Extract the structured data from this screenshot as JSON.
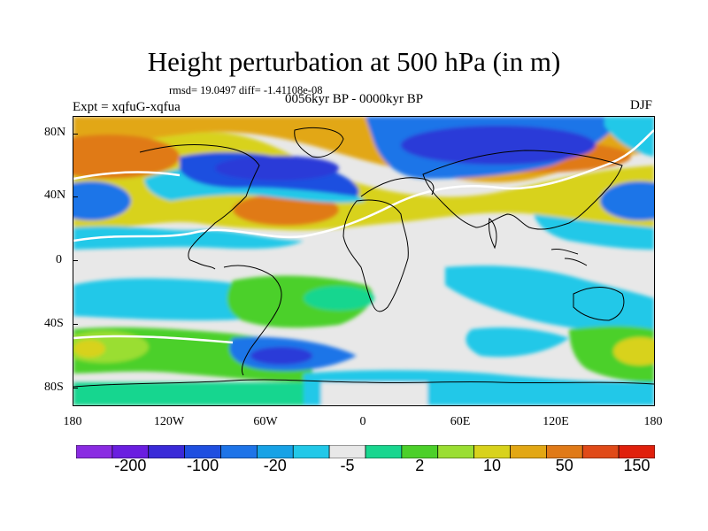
{
  "title": "Height perturbation at 500 hPa (in m)",
  "stats_line": "rmsd= 19.0497 diff= -1.41108e-08",
  "left_label": "Expt = xqfuG-xqfua",
  "center_label": "0056kyr BP - 0000kyr BP",
  "right_label": "DJF",
  "lat_labels": [
    "80N",
    "40N",
    "0",
    "40S",
    "80S"
  ],
  "lon_labels": [
    "180",
    "120W",
    "60W",
    "0",
    "60E",
    "120E",
    "180"
  ],
  "colorbar": {
    "colors": [
      "#8a2be2",
      "#6a1ee0",
      "#3a2ad8",
      "#1f4fe0",
      "#1e74e8",
      "#17a2e6",
      "#22c8e8",
      "#e8e8e8",
      "#19d68f",
      "#4cd02a",
      "#9ade32",
      "#d8d21c",
      "#e2a714",
      "#e07a18",
      "#e04a18",
      "#e0200c"
    ],
    "labels": [
      "-200",
      "-100",
      "-20",
      "-5",
      "2",
      "10",
      "50",
      "150"
    ]
  },
  "colors": {
    "neg_strong": "#1f2fd8",
    "neg_mid": "#1e74e8",
    "neg_light": "#22c8e8",
    "neutral": "#e8e8e8",
    "pos_light": "#4cd02a",
    "pos_mid": "#d8d21c",
    "pos_strong": "#e07a18"
  }
}
